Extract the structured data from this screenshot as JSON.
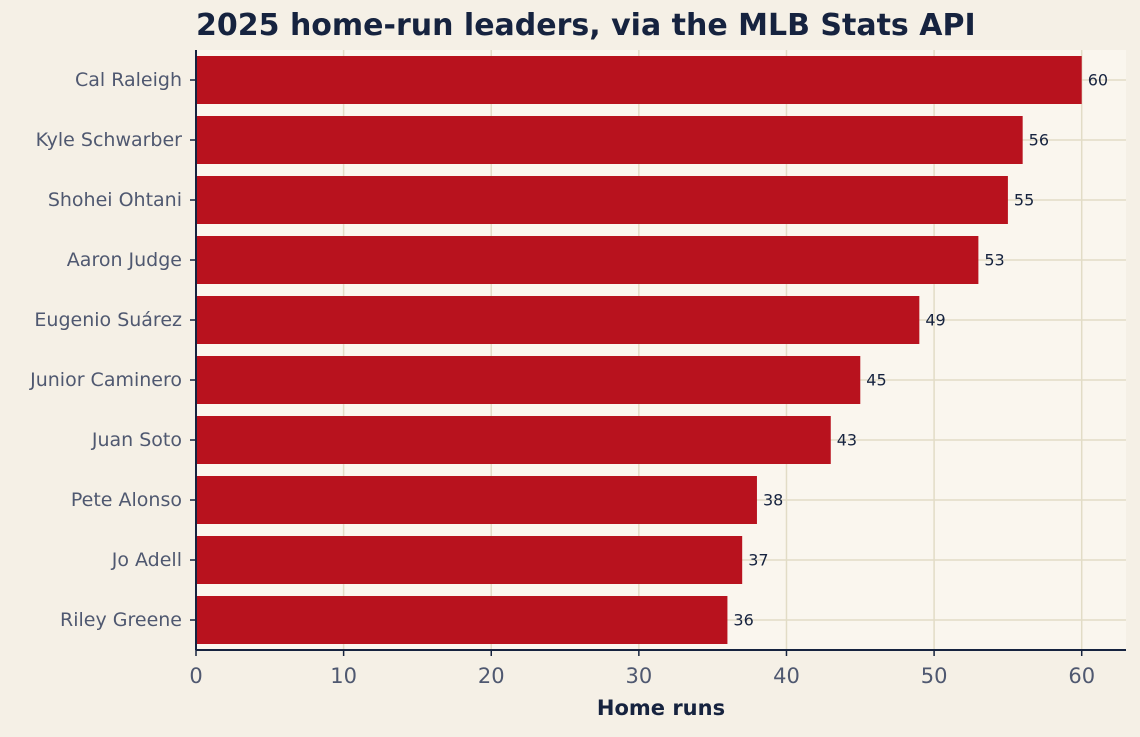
{
  "chart_data": {
    "type": "bar",
    "orientation": "horizontal",
    "title": "2025 home-run leaders, via the MLB Stats API",
    "xlabel": "Home runs",
    "ylabel": "",
    "xlim": [
      0,
      63
    ],
    "xticks": [
      0,
      10,
      20,
      30,
      40,
      50,
      60
    ],
    "grid": true,
    "categories": [
      "Cal Raleigh",
      "Kyle Schwarber",
      "Shohei Ohtani",
      "Aaron Judge",
      "Eugenio Suárez",
      "Junior Caminero",
      "Juan Soto",
      "Pete Alonso",
      "Jo Adell",
      "Riley Greene"
    ],
    "values": [
      60,
      56,
      55,
      53,
      49,
      45,
      43,
      38,
      37,
      36
    ],
    "data_labels": true,
    "colors": {
      "bar": "#b8121e",
      "plot_background": "#faf6ee",
      "figure_background": "#f5f0e6",
      "grid": "#e2dcc6",
      "axis": "#16233f"
    }
  }
}
